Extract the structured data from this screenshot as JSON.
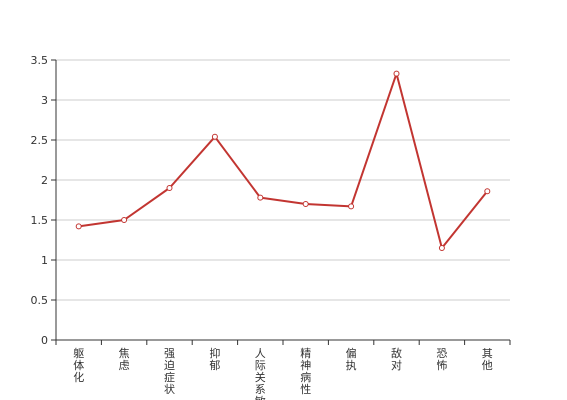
{
  "chart_data": {
    "type": "line",
    "title": "",
    "xlabel": "",
    "ylabel": "",
    "categories": [
      "躯体化",
      "焦虑",
      "强迫症状",
      "抑郁",
      "人际关系敏感",
      "精神病性",
      "偏执",
      "敌对",
      "恐怖",
      "其他"
    ],
    "series": [
      {
        "values": [
          1.42,
          1.5,
          1.9,
          2.54,
          1.78,
          1.7,
          1.67,
          3.33,
          1.15,
          1.86
        ]
      }
    ],
    "ylim": [
      0,
      3.5
    ],
    "yticks": [
      "0",
      "0.5",
      "1",
      "1.5",
      "2",
      "2.5",
      "3",
      "3.5"
    ],
    "grid": true,
    "legend": "none",
    "colors": {
      "line": "#c23531",
      "grid": "#cccccc",
      "axis": "#333333",
      "marker_fill": "#ffffff"
    }
  }
}
